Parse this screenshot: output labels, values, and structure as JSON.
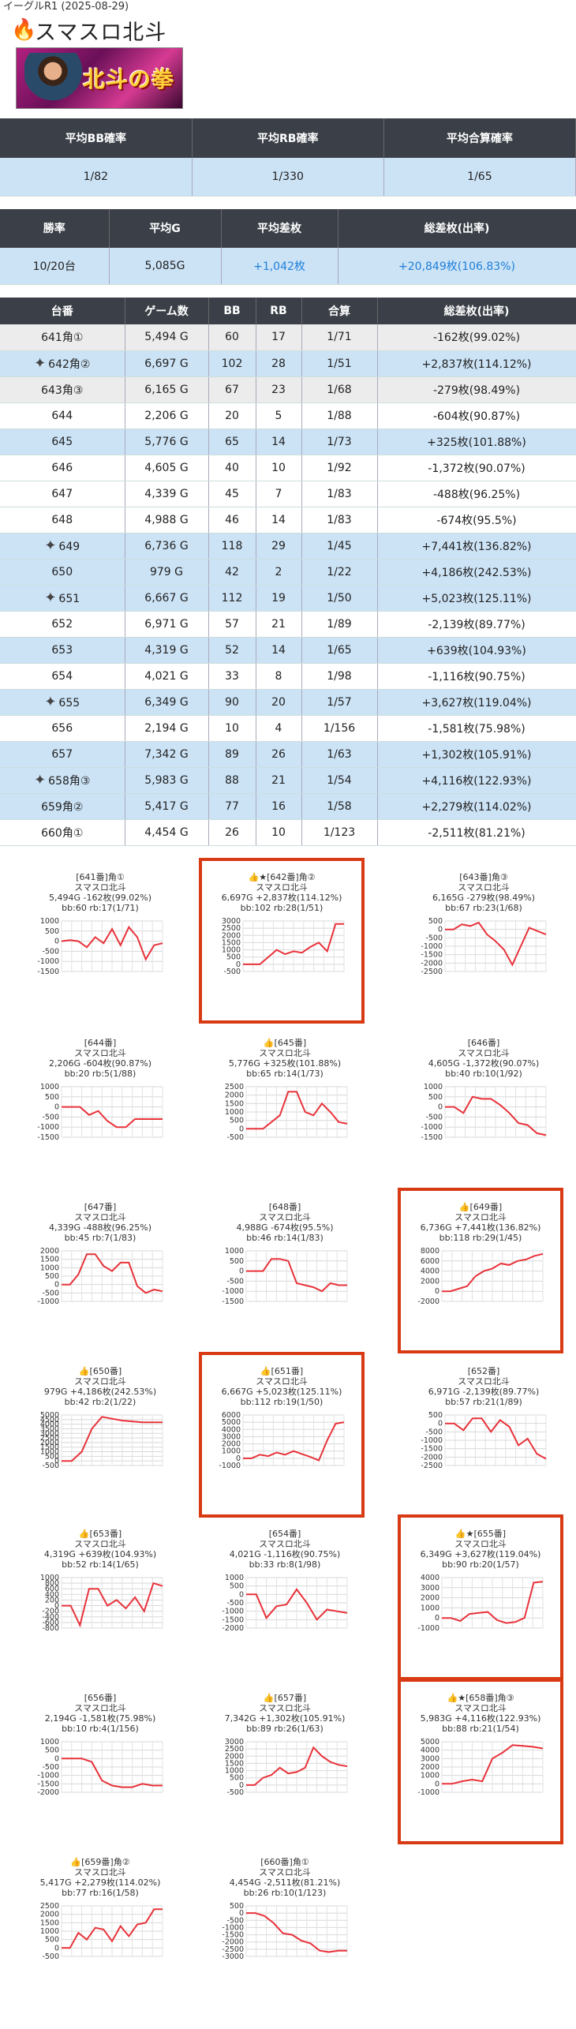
{
  "header": {
    "store_date": "イーグルR1 (2025-08-29)",
    "title": "スマスロ北斗",
    "flame_icon": "🔥",
    "banner_logo": "北斗の拳"
  },
  "prob_table": {
    "headers": [
      "平均BB確率",
      "平均RB確率",
      "平均合算確率"
    ],
    "values": [
      "1/82",
      "1/330",
      "1/65"
    ]
  },
  "summary_table": {
    "headers": [
      "勝率",
      "平均G",
      "平均差枚",
      "総差枚(出率)"
    ],
    "values": [
      "10/20台",
      "5,085G",
      "+1,042枚",
      "+20,849枚(106.83%)"
    ]
  },
  "machine_table": {
    "headers": [
      "台番",
      "ゲーム数",
      "BB",
      "RB",
      "合算",
      "総差枚(出率)"
    ],
    "rows": [
      {
        "no": "641角①",
        "games": "5,494 G",
        "bb": "60",
        "rb": "17",
        "total": "1/71",
        "diff": "-162枚(99.02%)",
        "star": false,
        "color": "gray"
      },
      {
        "no": "642角②",
        "games": "6,697 G",
        "bb": "102",
        "rb": "28",
        "total": "1/51",
        "diff": "+2,837枚(114.12%)",
        "star": true,
        "color": "blue"
      },
      {
        "no": "643角③",
        "games": "6,165 G",
        "bb": "67",
        "rb": "23",
        "total": "1/68",
        "diff": "-279枚(98.49%)",
        "star": false,
        "color": "gray"
      },
      {
        "no": "644",
        "games": "2,206 G",
        "bb": "20",
        "rb": "5",
        "total": "1/88",
        "diff": "-604枚(90.87%)",
        "star": false,
        "color": "white"
      },
      {
        "no": "645",
        "games": "5,776 G",
        "bb": "65",
        "rb": "14",
        "total": "1/73",
        "diff": "+325枚(101.88%)",
        "star": false,
        "color": "blue"
      },
      {
        "no": "646",
        "games": "4,605 G",
        "bb": "40",
        "rb": "10",
        "total": "1/92",
        "diff": "-1,372枚(90.07%)",
        "star": false,
        "color": "white"
      },
      {
        "no": "647",
        "games": "4,339 G",
        "bb": "45",
        "rb": "7",
        "total": "1/83",
        "diff": "-488枚(96.25%)",
        "star": false,
        "color": "white"
      },
      {
        "no": "648",
        "games": "4,988 G",
        "bb": "46",
        "rb": "14",
        "total": "1/83",
        "diff": "-674枚(95.5%)",
        "star": false,
        "color": "white"
      },
      {
        "no": "649",
        "games": "6,736 G",
        "bb": "118",
        "rb": "29",
        "total": "1/45",
        "diff": "+7,441枚(136.82%)",
        "star": true,
        "color": "blue"
      },
      {
        "no": "650",
        "games": "979 G",
        "bb": "42",
        "rb": "2",
        "total": "1/22",
        "diff": "+4,186枚(242.53%)",
        "star": false,
        "color": "blue"
      },
      {
        "no": "651",
        "games": "6,667 G",
        "bb": "112",
        "rb": "19",
        "total": "1/50",
        "diff": "+5,023枚(125.11%)",
        "star": true,
        "color": "blue"
      },
      {
        "no": "652",
        "games": "6,971 G",
        "bb": "57",
        "rb": "21",
        "total": "1/89",
        "diff": "-2,139枚(89.77%)",
        "star": false,
        "color": "white"
      },
      {
        "no": "653",
        "games": "4,319 G",
        "bb": "52",
        "rb": "14",
        "total": "1/65",
        "diff": "+639枚(104.93%)",
        "star": false,
        "color": "blue"
      },
      {
        "no": "654",
        "games": "4,021 G",
        "bb": "33",
        "rb": "8",
        "total": "1/98",
        "diff": "-1,116枚(90.75%)",
        "star": false,
        "color": "white"
      },
      {
        "no": "655",
        "games": "6,349 G",
        "bb": "90",
        "rb": "20",
        "total": "1/57",
        "diff": "+3,627枚(119.04%)",
        "star": true,
        "color": "blue"
      },
      {
        "no": "656",
        "games": "2,194 G",
        "bb": "10",
        "rb": "4",
        "total": "1/156",
        "diff": "-1,581枚(75.98%)",
        "star": false,
        "color": "white"
      },
      {
        "no": "657",
        "games": "7,342 G",
        "bb": "89",
        "rb": "26",
        "total": "1/63",
        "diff": "+1,302枚(105.91%)",
        "star": false,
        "color": "blue"
      },
      {
        "no": "658角③",
        "games": "5,983 G",
        "bb": "88",
        "rb": "21",
        "total": "1/54",
        "diff": "+4,116枚(122.93%)",
        "star": true,
        "color": "blue"
      },
      {
        "no": "659角②",
        "games": "5,417 G",
        "bb": "77",
        "rb": "16",
        "total": "1/58",
        "diff": "+2,279枚(114.02%)",
        "star": false,
        "color": "blue"
      },
      {
        "no": "660角①",
        "games": "4,454 G",
        "bb": "26",
        "rb": "10",
        "total": "1/123",
        "diff": "-2,511枚(81.21%)",
        "star": false,
        "color": "white"
      }
    ]
  },
  "charts": [
    {
      "title": "[641番]角①",
      "sub": "スマスロ北斗",
      "line1": "5,494G -162枚(99.02%)",
      "line2": "bb:60 rb:17(1/71)",
      "thumb": false,
      "star": false,
      "hl": false,
      "ticks": [
        "1000",
        "500",
        "0",
        "-500",
        "-1000",
        "-1500"
      ],
      "ymin": -1500,
      "ymax": 1000,
      "values": [
        0,
        50,
        0,
        -300,
        200,
        -100,
        600,
        -200,
        700,
        200,
        -900,
        -200,
        -100
      ]
    },
    {
      "title": "[642番]角②",
      "sub": "スマスロ北斗",
      "line1": "6,697G +2,837枚(114.12%)",
      "line2": "bb:102 rb:28(1/51)",
      "thumb": true,
      "star": true,
      "hl": true,
      "ticks": [
        "3000",
        "2500",
        "2000",
        "1500",
        "1000",
        "500",
        "0",
        "-500"
      ],
      "ymin": -500,
      "ymax": 3000,
      "values": [
        0,
        0,
        0,
        500,
        1000,
        700,
        900,
        800,
        1200,
        1500,
        900,
        2800,
        2800
      ]
    },
    {
      "title": "[643番]角③",
      "sub": "スマスロ北斗",
      "line1": "6,165G -279枚(98.49%)",
      "line2": "bb:67 rb:23(1/68)",
      "thumb": false,
      "star": false,
      "hl": false,
      "ticks": [
        "500",
        "0",
        "-500",
        "-1000",
        "-1500",
        "-2000",
        "-2500"
      ],
      "ymin": -2500,
      "ymax": 500,
      "values": [
        0,
        0,
        300,
        200,
        400,
        -300,
        -700,
        -1200,
        -2100,
        -1000,
        100,
        -100,
        -300
      ]
    },
    {
      "title": "[644番]",
      "sub": "スマスロ北斗",
      "line1": "2,206G -604枚(90.87%)",
      "line2": "bb:20 rb:5(1/88)",
      "thumb": false,
      "star": false,
      "hl": false,
      "ticks": [
        "1000",
        "500",
        "0",
        "-500",
        "-1000",
        "-1500"
      ],
      "ymin": -1500,
      "ymax": 1000,
      "values": [
        0,
        0,
        0,
        -400,
        -200,
        -700,
        -1000,
        -1000,
        -600,
        -600,
        -600,
        -600
      ]
    },
    {
      "title": "[645番]",
      "sub": "スマスロ北斗",
      "line1": "5,776G +325枚(101.88%)",
      "line2": "bb:65 rb:14(1/73)",
      "thumb": true,
      "star": false,
      "hl": false,
      "ticks": [
        "2500",
        "2000",
        "1500",
        "1000",
        "500",
        "0",
        "-500"
      ],
      "ymin": -500,
      "ymax": 2500,
      "values": [
        0,
        0,
        0,
        400,
        800,
        2200,
        2200,
        1000,
        800,
        1500,
        1000,
        400,
        300
      ]
    },
    {
      "title": "[646番]",
      "sub": "スマスロ北斗",
      "line1": "4,605G -1,372枚(90.07%)",
      "line2": "bb:40 rb:10(1/92)",
      "thumb": false,
      "star": false,
      "hl": false,
      "ticks": [
        "1000",
        "500",
        "0",
        "-500",
        "-1000",
        "-1500"
      ],
      "ymin": -1500,
      "ymax": 1000,
      "values": [
        0,
        0,
        -300,
        500,
        400,
        400,
        100,
        -300,
        -800,
        -900,
        -1300,
        -1400
      ]
    },
    {
      "title": "[647番]",
      "sub": "スマスロ北斗",
      "line1": "4,339G -488枚(96.25%)",
      "line2": "bb:45 rb:7(1/83)",
      "thumb": false,
      "star": false,
      "hl": false,
      "ticks": [
        "2000",
        "1500",
        "1000",
        "500",
        "0",
        "-500",
        "-1000"
      ],
      "ymin": -1000,
      "ymax": 2000,
      "values": [
        0,
        0,
        600,
        1800,
        1800,
        1100,
        800,
        1300,
        1300,
        -100,
        -500,
        -300,
        -400
      ]
    },
    {
      "title": "[648番]",
      "sub": "スマスロ北斗",
      "line1": "4,988G -674枚(95.5%)",
      "line2": "bb:46 rb:14(1/83)",
      "thumb": false,
      "star": false,
      "hl": false,
      "ticks": [
        "1000",
        "500",
        "0",
        "-500",
        "-1000",
        "-1500"
      ],
      "ymin": -1500,
      "ymax": 1000,
      "values": [
        0,
        0,
        0,
        600,
        600,
        500,
        -600,
        -700,
        -800,
        -1000,
        -600,
        -700,
        -700
      ]
    },
    {
      "title": "[649番]",
      "sub": "スマスロ北斗",
      "line1": "6,736G +7,441枚(136.82%)",
      "line2": "bb:118 rb:29(1/45)",
      "thumb": true,
      "star": false,
      "hl": true,
      "ticks": [
        "8000",
        "6000",
        "4000",
        "2000",
        "0",
        "-2000"
      ],
      "ymin": -2000,
      "ymax": 8000,
      "values": [
        0,
        0,
        500,
        1000,
        3000,
        4000,
        4500,
        5500,
        5200,
        6000,
        6300,
        7000,
        7400
      ]
    },
    {
      "title": "[650番]",
      "sub": "スマスロ北斗",
      "line1": "979G +4,186枚(242.53%)",
      "line2": "bb:42 rb:2(1/22)",
      "thumb": true,
      "star": false,
      "hl": false,
      "ticks": [
        "5000",
        "4500",
        "4000",
        "3500",
        "3000",
        "2500",
        "2000",
        "1500",
        "1000",
        "500",
        "0",
        "-500"
      ],
      "ymin": -500,
      "ymax": 5000,
      "values": [
        0,
        0,
        1000,
        3500,
        4800,
        4600,
        4400,
        4300,
        4200,
        4200,
        4200
      ]
    },
    {
      "title": "[651番]",
      "sub": "スマスロ北斗",
      "line1": "6,667G +5,023枚(125.11%)",
      "line2": "bb:112 rb:19(1/50)",
      "thumb": true,
      "star": false,
      "hl": true,
      "ticks": [
        "6000",
        "5000",
        "4000",
        "3000",
        "2000",
        "1000",
        "0",
        "-1000"
      ],
      "ymin": -1000,
      "ymax": 6000,
      "values": [
        0,
        0,
        500,
        300,
        800,
        500,
        1000,
        600,
        200,
        -300,
        2500,
        4800,
        5000
      ]
    },
    {
      "title": "[652番]",
      "sub": "スマスロ北斗",
      "line1": "6,971G -2,139枚(89.77%)",
      "line2": "bb:57 rb:21(1/89)",
      "thumb": false,
      "star": false,
      "hl": false,
      "ticks": [
        "500",
        "0",
        "-500",
        "-1000",
        "-1500",
        "-2000",
        "-2500"
      ],
      "ymin": -2500,
      "ymax": 500,
      "values": [
        0,
        0,
        -400,
        300,
        300,
        -500,
        200,
        -200,
        -1300,
        -900,
        -1800,
        -2100
      ]
    },
    {
      "title": "[653番]",
      "sub": "スマスロ北斗",
      "line1": "4,319G +639枚(104.93%)",
      "line2": "bb:52 rb:14(1/65)",
      "thumb": true,
      "star": false,
      "hl": false,
      "ticks": [
        "1000",
        "800",
        "600",
        "400",
        "200",
        "0",
        "-200",
        "-400",
        "-600",
        "-800"
      ],
      "ymin": -800,
      "ymax": 1000,
      "values": [
        0,
        0,
        -700,
        600,
        600,
        0,
        200,
        -100,
        300,
        -200,
        800,
        700
      ]
    },
    {
      "title": "[654番]",
      "sub": "スマスロ北斗",
      "line1": "4,021G -1,116枚(90.75%)",
      "line2": "bb:33 rb:8(1/98)",
      "thumb": false,
      "star": false,
      "hl": false,
      "ticks": [
        "1000",
        "500",
        "0",
        "-500",
        "-1000",
        "-1500",
        "-2000"
      ],
      "ymin": -2000,
      "ymax": 1000,
      "values": [
        0,
        0,
        -1400,
        -700,
        -600,
        300,
        -500,
        -1500,
        -900,
        -1000,
        -1100
      ]
    },
    {
      "title": "[655番]",
      "sub": "スマスロ北斗",
      "line1": "6,349G +3,627枚(119.04%)",
      "line2": "bb:90 rb:20(1/57)",
      "thumb": true,
      "star": true,
      "hl": true,
      "ticks": [
        "4000",
        "3000",
        "2000",
        "1000",
        "0",
        "-1000"
      ],
      "ymin": -1000,
      "ymax": 4000,
      "values": [
        0,
        0,
        -300,
        400,
        500,
        600,
        -200,
        -500,
        -400,
        0,
        3500,
        3600
      ]
    },
    {
      "title": "[656番]",
      "sub": "スマスロ北斗",
      "line1": "2,194G -1,581枚(75.98%)",
      "line2": "bb:10 rb:4(1/156)",
      "thumb": false,
      "star": false,
      "hl": false,
      "ticks": [
        "1000",
        "500",
        "0",
        "-500",
        "-1000",
        "-1500",
        "-2000"
      ],
      "ymin": -2000,
      "ymax": 1000,
      "values": [
        0,
        0,
        0,
        -200,
        -1300,
        -1600,
        -1700,
        -1700,
        -1500,
        -1600,
        -1600
      ]
    },
    {
      "title": "[657番]",
      "sub": "スマスロ北斗",
      "line1": "7,342G +1,302枚(105.91%)",
      "line2": "bb:89 rb:26(1/63)",
      "thumb": true,
      "star": false,
      "hl": false,
      "ticks": [
        "3000",
        "2500",
        "2000",
        "1500",
        "1000",
        "500",
        "0",
        "-500"
      ],
      "ymin": -500,
      "ymax": 3000,
      "values": [
        0,
        0,
        500,
        700,
        1200,
        800,
        900,
        1200,
        2600,
        2000,
        1600,
        1400,
        1300
      ]
    },
    {
      "title": "[658番]角③",
      "sub": "スマスロ北斗",
      "line1": "5,983G +4,116枚(122.93%)",
      "line2": "bb:88 rb:21(1/54)",
      "thumb": true,
      "star": true,
      "hl": true,
      "ticks": [
        "5000",
        "4000",
        "3000",
        "2000",
        "1000",
        "0",
        "-1000"
      ],
      "ymin": -1000,
      "ymax": 5000,
      "values": [
        0,
        0,
        300,
        500,
        300,
        3000,
        3700,
        4600,
        4500,
        4400,
        4200
      ]
    },
    {
      "title": "[659番]角②",
      "sub": "スマスロ北斗",
      "line1": "5,417G +2,279枚(114.02%)",
      "line2": "bb:77 rb:16(1/58)",
      "thumb": true,
      "star": false,
      "hl": false,
      "ticks": [
        "2500",
        "2000",
        "1500",
        "1000",
        "500",
        "0",
        "-500"
      ],
      "ymin": -500,
      "ymax": 2500,
      "values": [
        0,
        0,
        900,
        500,
        1200,
        1100,
        400,
        1300,
        700,
        1400,
        1500,
        2300,
        2300
      ]
    },
    {
      "title": "[660番]角①",
      "sub": "スマスロ北斗",
      "line1": "4,454G -2,511枚(81.21%)",
      "line2": "bb:26 rb:10(1/123)",
      "thumb": false,
      "star": false,
      "hl": false,
      "ticks": [
        "500",
        "0",
        "-500",
        "-1000",
        "-1500",
        "-2000",
        "-2500",
        "-3000"
      ],
      "ymin": -3000,
      "ymax": 500,
      "values": [
        0,
        0,
        -200,
        -700,
        -1400,
        -1500,
        -1900,
        -2100,
        -2600,
        -2700,
        -2600,
        -2600
      ]
    }
  ]
}
